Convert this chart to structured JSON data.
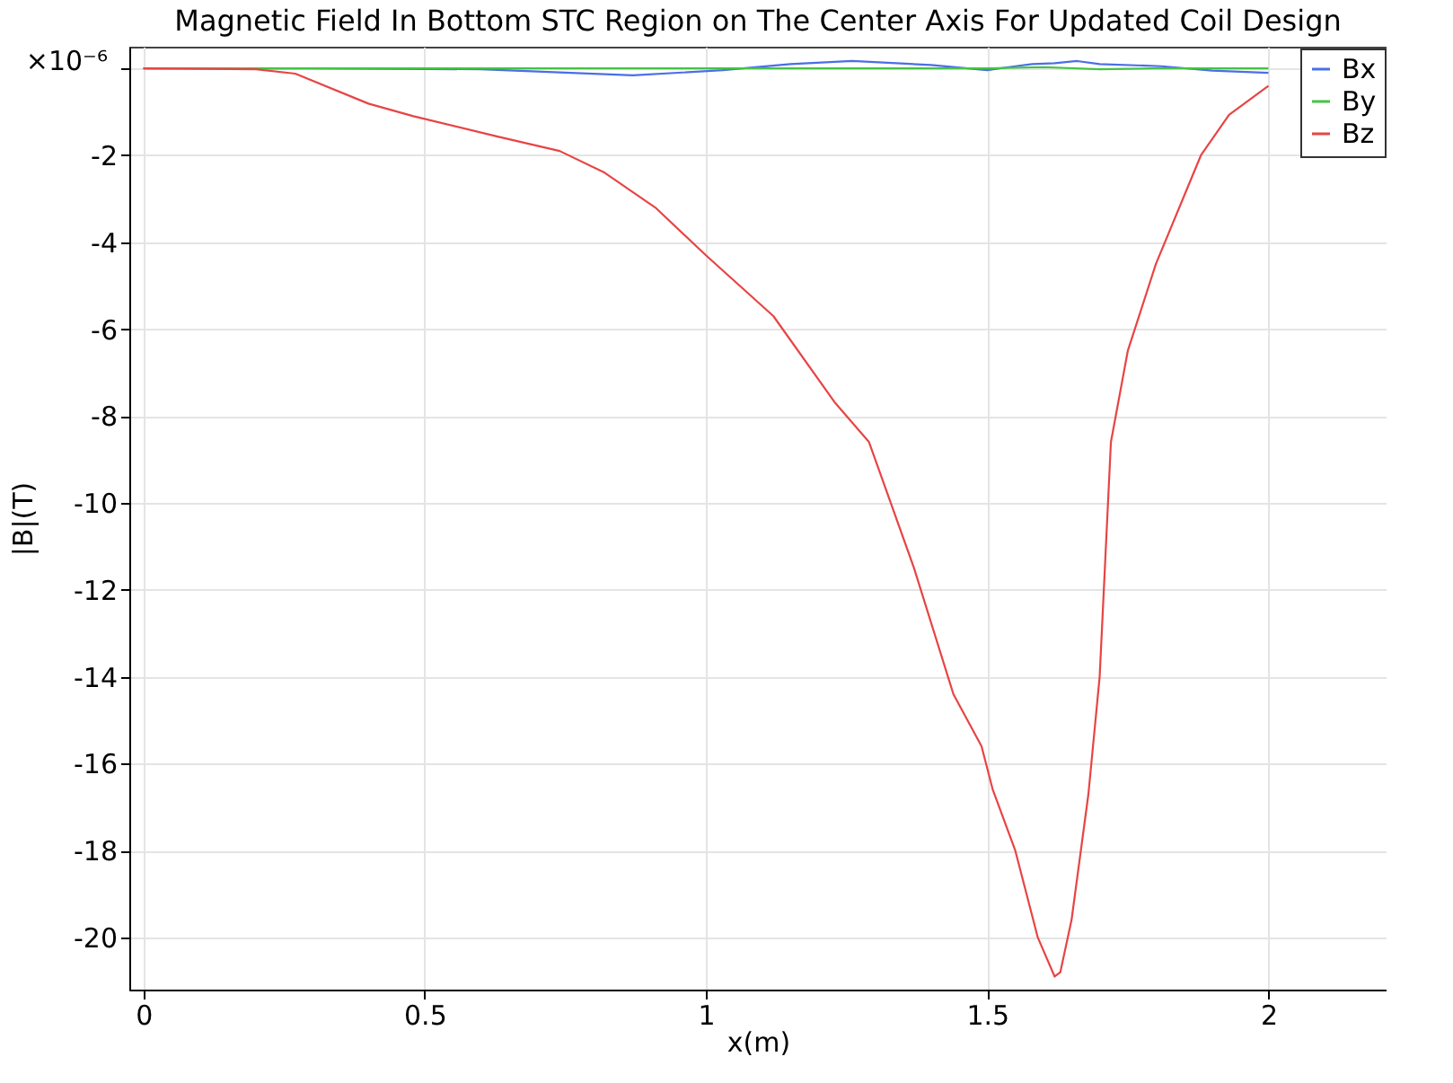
{
  "chart_data": {
    "type": "line",
    "title": "Magnetic Field In Bottom STC Region on The Center Axis For Updated Coil Design",
    "xlabel": "x(m)",
    "ylabel": "|B|(T)",
    "annotations": [
      "×10⁻⁶"
    ],
    "xlim": [
      -0.025,
      2.21
    ],
    "xticks": [
      0,
      0.5,
      1,
      1.5,
      2
    ],
    "ylim": [
      -21.2,
      0.5
    ],
    "yticks": [
      {
        "value": 0,
        "label": null
      },
      -2,
      -4,
      -6,
      -8,
      -10,
      -12,
      -14,
      -16,
      -18,
      -20
    ],
    "grid": true,
    "legend": "top right",
    "marker": "none",
    "line_style": "solid",
    "series": [
      {
        "name": "Bx",
        "color": "#4a6ee8",
        "x": [
          0,
          0.3,
          0.6,
          0.87,
          1.03,
          1.15,
          1.26,
          1.4,
          1.5,
          1.55,
          1.58,
          1.62,
          1.66,
          1.7,
          1.81,
          1.9,
          2.0
        ],
        "values": [
          0,
          0,
          -0.02,
          -0.16,
          -0.04,
          0.1,
          0.17,
          0.08,
          -0.04,
          0.05,
          0.1,
          0.12,
          0.17,
          0.1,
          0.05,
          -0.05,
          -0.1
        ]
      },
      {
        "name": "By",
        "color": "#44c444",
        "x": [
          0,
          0.5,
          1,
          1.5,
          1.6,
          1.7,
          1.8,
          2.0
        ],
        "values": [
          0,
          0,
          0,
          0,
          0.03,
          -0.02,
          0,
          0
        ]
      },
      {
        "name": "Bz",
        "color": "#e84444",
        "x": [
          0,
          0.2,
          0.27,
          0.4,
          0.48,
          0.63,
          0.74,
          0.82,
          0.91,
          1.0,
          1.12,
          1.23,
          1.29,
          1.37,
          1.44,
          1.49,
          1.51,
          1.55,
          1.59,
          1.62,
          1.63,
          1.65,
          1.68,
          1.7,
          1.72,
          1.75,
          1.8,
          1.88,
          1.93,
          2.0
        ],
        "values": [
          0,
          -0.02,
          -0.12,
          -0.81,
          -1.1,
          -1.57,
          -1.9,
          -2.4,
          -3.2,
          -4.3,
          -5.7,
          -7.7,
          -8.6,
          -11.5,
          -14.4,
          -15.6,
          -16.6,
          -18.0,
          -20.0,
          -20.9,
          -20.8,
          -19.6,
          -16.7,
          -14.0,
          -8.6,
          -6.5,
          -4.5,
          -2.0,
          -1.07,
          -0.4
        ]
      }
    ]
  }
}
